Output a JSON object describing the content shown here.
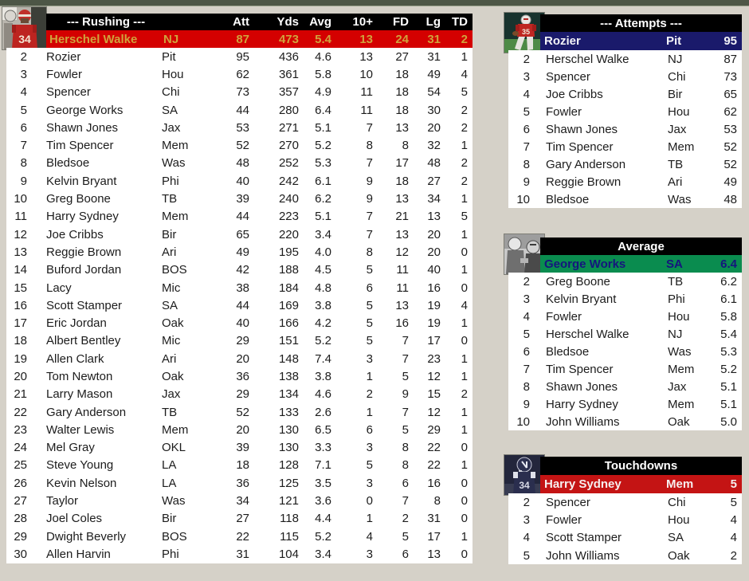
{
  "colors": {
    "page_bg": "#d5d1c8",
    "top_strip": "#4d5646",
    "header_bg": "#000000",
    "header_text": "#ffffff",
    "body_bg": "#ffffff",
    "row_text": "#1c1c1c",
    "rushing_highlight": "#d40000",
    "rushing_highlight_text": "#d0a23c",
    "attempts_highlight": "#1a1a6b",
    "attempts_highlight_text": "#f4f4f8",
    "average_highlight": "#0a8c4f",
    "average_highlight_text": "#15157d",
    "touchdowns_highlight": "#c41414",
    "touchdowns_highlight_text": "#f6efef"
  },
  "rushing": {
    "title": "--- Rushing ---",
    "photo_icon": "red-jersey-34-player-photo",
    "columns": [
      "Att",
      "Yds",
      "Avg",
      "10+",
      "FD",
      "Lg",
      "TD"
    ],
    "leader": {
      "name": "Herschel Walke",
      "team": "NJ",
      "values": [
        "87",
        "473",
        "5.4",
        "13",
        "24",
        "31",
        "2"
      ]
    },
    "rows": [
      {
        "rank": "2",
        "name": "Rozier",
        "team": "Pit",
        "values": [
          "95",
          "436",
          "4.6",
          "13",
          "27",
          "31",
          "1"
        ]
      },
      {
        "rank": "3",
        "name": "Fowler",
        "team": "Hou",
        "values": [
          "62",
          "361",
          "5.8",
          "10",
          "18",
          "49",
          "4"
        ]
      },
      {
        "rank": "4",
        "name": "Spencer",
        "team": "Chi",
        "values": [
          "73",
          "357",
          "4.9",
          "11",
          "18",
          "54",
          "5"
        ]
      },
      {
        "rank": "5",
        "name": "George Works",
        "team": "SA",
        "values": [
          "44",
          "280",
          "6.4",
          "11",
          "18",
          "30",
          "2"
        ]
      },
      {
        "rank": "6",
        "name": "Shawn Jones",
        "team": "Jax",
        "values": [
          "53",
          "271",
          "5.1",
          "7",
          "13",
          "20",
          "2"
        ]
      },
      {
        "rank": "7",
        "name": "Tim Spencer",
        "team": "Mem",
        "values": [
          "52",
          "270",
          "5.2",
          "8",
          "8",
          "32",
          "1"
        ]
      },
      {
        "rank": "8",
        "name": "Bledsoe",
        "team": "Was",
        "values": [
          "48",
          "252",
          "5.3",
          "7",
          "17",
          "48",
          "2"
        ]
      },
      {
        "rank": "9",
        "name": "Kelvin Bryant",
        "team": "Phi",
        "values": [
          "40",
          "242",
          "6.1",
          "9",
          "18",
          "27",
          "2"
        ]
      },
      {
        "rank": "10",
        "name": "Greg Boone",
        "team": "TB",
        "values": [
          "39",
          "240",
          "6.2",
          "9",
          "13",
          "34",
          "1"
        ]
      },
      {
        "rank": "11",
        "name": "Harry Sydney",
        "team": "Mem",
        "values": [
          "44",
          "223",
          "5.1",
          "7",
          "21",
          "13",
          "5"
        ]
      },
      {
        "rank": "12",
        "name": "Joe Cribbs",
        "team": "Bir",
        "values": [
          "65",
          "220",
          "3.4",
          "7",
          "13",
          "20",
          "1"
        ]
      },
      {
        "rank": "13",
        "name": "Reggie Brown",
        "team": "Ari",
        "values": [
          "49",
          "195",
          "4.0",
          "8",
          "12",
          "20",
          "0"
        ]
      },
      {
        "rank": "14",
        "name": "Buford Jordan",
        "team": "BOS",
        "values": [
          "42",
          "188",
          "4.5",
          "5",
          "11",
          "40",
          "1"
        ]
      },
      {
        "rank": "15",
        "name": "Lacy",
        "team": "Mic",
        "values": [
          "38",
          "184",
          "4.8",
          "6",
          "11",
          "16",
          "0"
        ]
      },
      {
        "rank": "16",
        "name": "Scott Stamper",
        "team": "SA",
        "values": [
          "44",
          "169",
          "3.8",
          "5",
          "13",
          "19",
          "4"
        ]
      },
      {
        "rank": "17",
        "name": "Eric Jordan",
        "team": "Oak",
        "values": [
          "40",
          "166",
          "4.2",
          "5",
          "16",
          "19",
          "1"
        ]
      },
      {
        "rank": "18",
        "name": "Albert Bentley",
        "team": "Mic",
        "values": [
          "29",
          "151",
          "5.2",
          "5",
          "7",
          "17",
          "0"
        ]
      },
      {
        "rank": "19",
        "name": "Allen Clark",
        "team": "Ari",
        "values": [
          "20",
          "148",
          "7.4",
          "3",
          "7",
          "23",
          "1"
        ]
      },
      {
        "rank": "20",
        "name": "Tom Newton",
        "team": "Oak",
        "values": [
          "36",
          "138",
          "3.8",
          "1",
          "5",
          "12",
          "1"
        ]
      },
      {
        "rank": "21",
        "name": "Larry Mason",
        "team": "Jax",
        "values": [
          "29",
          "134",
          "4.6",
          "2",
          "9",
          "15",
          "2"
        ]
      },
      {
        "rank": "22",
        "name": "Gary Anderson",
        "team": "TB",
        "values": [
          "52",
          "133",
          "2.6",
          "1",
          "7",
          "12",
          "1"
        ]
      },
      {
        "rank": "23",
        "name": "Walter Lewis",
        "team": "Mem",
        "values": [
          "20",
          "130",
          "6.5",
          "6",
          "5",
          "29",
          "1"
        ]
      },
      {
        "rank": "24",
        "name": "Mel Gray",
        "team": "OKL",
        "values": [
          "39",
          "130",
          "3.3",
          "3",
          "8",
          "22",
          "0"
        ]
      },
      {
        "rank": "25",
        "name": "Steve Young",
        "team": "LA",
        "values": [
          "18",
          "128",
          "7.1",
          "5",
          "8",
          "22",
          "1"
        ]
      },
      {
        "rank": "26",
        "name": "Kevin Nelson",
        "team": "LA",
        "values": [
          "36",
          "125",
          "3.5",
          "3",
          "6",
          "16",
          "0"
        ]
      },
      {
        "rank": "27",
        "name": "Taylor",
        "team": "Was",
        "values": [
          "34",
          "121",
          "3.6",
          "0",
          "7",
          "8",
          "0"
        ]
      },
      {
        "rank": "28",
        "name": "Joel Coles",
        "team": "Bir",
        "values": [
          "27",
          "118",
          "4.4",
          "1",
          "2",
          "31",
          "0"
        ]
      },
      {
        "rank": "29",
        "name": "Dwight Beverly",
        "team": "BOS",
        "values": [
          "22",
          "115",
          "5.2",
          "4",
          "5",
          "17",
          "1"
        ]
      },
      {
        "rank": "30",
        "name": "Allen Harvin",
        "team": "Phi",
        "values": [
          "31",
          "104",
          "3.4",
          "3",
          "6",
          "13",
          "0"
        ]
      }
    ]
  },
  "attempts": {
    "title": "--- Attempts ---",
    "photo_icon": "red-jersey-running-player-photo",
    "leader": {
      "name": "Rozier",
      "team": "Pit",
      "value": "95"
    },
    "rows": [
      {
        "rank": "2",
        "name": "Herschel Walke",
        "team": "NJ",
        "value": "87"
      },
      {
        "rank": "3",
        "name": "Spencer",
        "team": "Chi",
        "value": "73"
      },
      {
        "rank": "4",
        "name": "Joe Cribbs",
        "team": "Bir",
        "value": "65"
      },
      {
        "rank": "5",
        "name": "Fowler",
        "team": "Hou",
        "value": "62"
      },
      {
        "rank": "6",
        "name": "Shawn Jones",
        "team": "Jax",
        "value": "53"
      },
      {
        "rank": "7",
        "name": "Tim Spencer",
        "team": "Mem",
        "value": "52"
      },
      {
        "rank": "8",
        "name": "Gary Anderson",
        "team": "TB",
        "value": "52"
      },
      {
        "rank": "9",
        "name": "Reggie Brown",
        "team": "Ari",
        "value": "49"
      },
      {
        "rank": "10",
        "name": "Bledsoe",
        "team": "Was",
        "value": "48"
      }
    ]
  },
  "average": {
    "title": "Average",
    "photo_icon": "black-white-two-players-photo",
    "leader": {
      "name": "George Works",
      "team": "SA",
      "value": "6.4"
    },
    "rows": [
      {
        "rank": "2",
        "name": "Greg Boone",
        "team": "TB",
        "value": "6.2"
      },
      {
        "rank": "3",
        "name": "Kelvin Bryant",
        "team": "Phi",
        "value": "6.1"
      },
      {
        "rank": "4",
        "name": "Fowler",
        "team": "Hou",
        "value": "5.8"
      },
      {
        "rank": "5",
        "name": "Herschel Walke",
        "team": "NJ",
        "value": "5.4"
      },
      {
        "rank": "6",
        "name": "Bledsoe",
        "team": "Was",
        "value": "5.3"
      },
      {
        "rank": "7",
        "name": "Tim Spencer",
        "team": "Mem",
        "value": "5.2"
      },
      {
        "rank": "8",
        "name": "Shawn Jones",
        "team": "Jax",
        "value": "5.1"
      },
      {
        "rank": "9",
        "name": "Harry Sydney",
        "team": "Mem",
        "value": "5.1"
      },
      {
        "rank": "10",
        "name": "John Williams",
        "team": "Oak",
        "value": "5.0"
      }
    ]
  },
  "touchdowns": {
    "title": "Touchdowns",
    "photo_icon": "dark-jersey-player-photo",
    "leader": {
      "name": "Harry Sydney",
      "team": "Mem",
      "value": "5"
    },
    "rows": [
      {
        "rank": "2",
        "name": "Spencer",
        "team": "Chi",
        "value": "5"
      },
      {
        "rank": "3",
        "name": "Fowler",
        "team": "Hou",
        "value": "4"
      },
      {
        "rank": "4",
        "name": "Scott Stamper",
        "team": "SA",
        "value": "4"
      },
      {
        "rank": "5",
        "name": "John Williams",
        "team": "Oak",
        "value": "2"
      }
    ]
  }
}
